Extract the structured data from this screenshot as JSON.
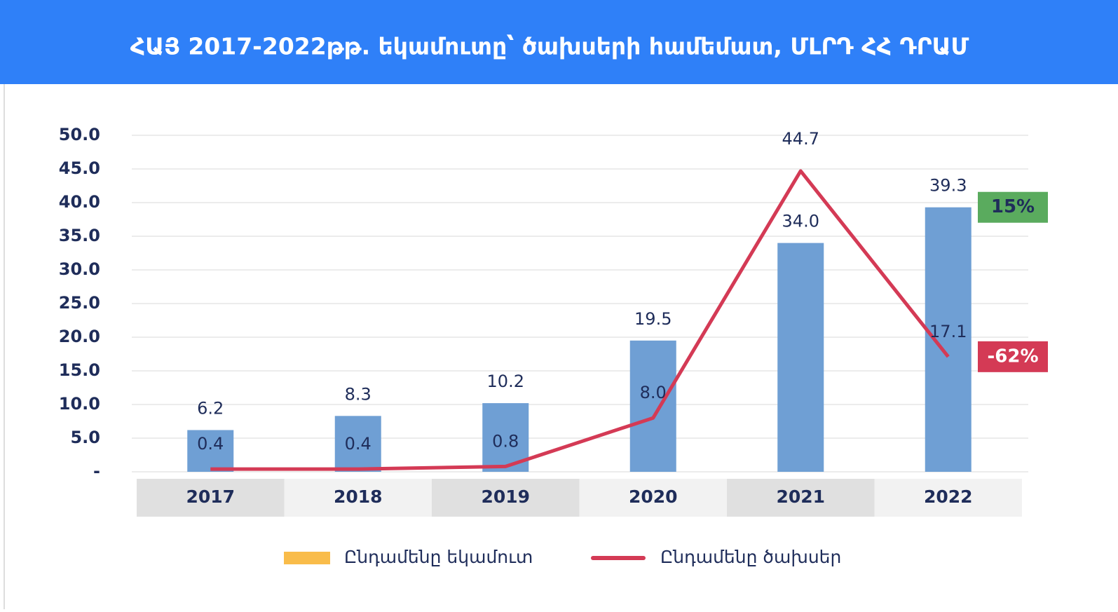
{
  "chart_data": {
    "type": "bar",
    "title": "ՀԱՅ 2017-2022թթ. եկամուտը՝ ծախսերի համեմատ, ՄԼՐԴ ՀՀ ԴՐԱՄ",
    "categories": [
      "2017",
      "2018",
      "2019",
      "2020",
      "2021",
      "2022"
    ],
    "series": [
      {
        "name": "Ընդամենը եկամուտ",
        "type": "bar",
        "color": "#6f9fd4",
        "legend_color": "#f9bc4a",
        "values": [
          6.2,
          8.3,
          10.2,
          19.5,
          34.0,
          39.3
        ],
        "value_labels": [
          "6.2",
          "8.3",
          "10.2",
          "19.5",
          "34.0",
          "39.3"
        ]
      },
      {
        "name": "Ընդամենը ծախսեր",
        "type": "line",
        "color": "#d43a55",
        "values": [
          0.4,
          0.4,
          0.8,
          8.0,
          44.7,
          17.1
        ],
        "value_labels": [
          "0.4",
          "0.4",
          "0.8",
          "8.0",
          "44.7",
          "17.1"
        ]
      }
    ],
    "ylim": [
      0,
      50
    ],
    "yticks": [
      {
        "value": 0,
        "label": "-"
      },
      {
        "value": 5,
        "label": "5.0"
      },
      {
        "value": 10,
        "label": "10.0"
      },
      {
        "value": 15,
        "label": "15.0"
      },
      {
        "value": 20,
        "label": "20.0"
      },
      {
        "value": 25,
        "label": "25.0"
      },
      {
        "value": 30,
        "label": "30.0"
      },
      {
        "value": 35,
        "label": "35.0"
      },
      {
        "value": 40,
        "label": "40.0"
      },
      {
        "value": 45,
        "label": "45.0"
      },
      {
        "value": 50,
        "label": "50.0"
      }
    ],
    "grid": true,
    "annotations": [
      {
        "text": "15%",
        "color": "#5aab5e",
        "series": 0
      },
      {
        "text": "-62%",
        "color": "#d43a55",
        "series": 1
      }
    ]
  }
}
